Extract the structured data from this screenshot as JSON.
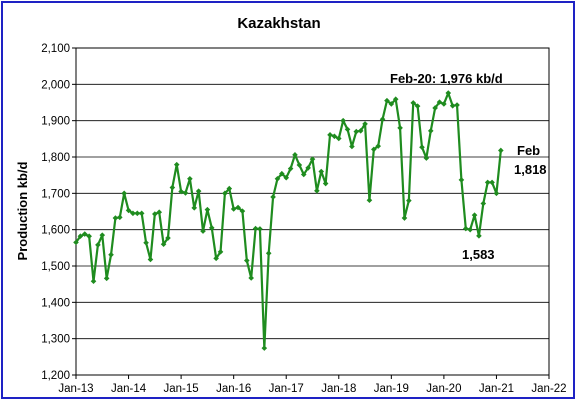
{
  "chart_data": {
    "type": "line",
    "title": "Kazakhstan",
    "xlabel": "",
    "ylabel": "Production kb/d",
    "ylim": [
      1200,
      2100
    ],
    "y_ticks": [
      1200,
      1300,
      1400,
      1500,
      1600,
      1700,
      1800,
      1900,
      2000,
      2100
    ],
    "y_tick_labels": [
      "1,200",
      "1,300",
      "1,400",
      "1,500",
      "1,600",
      "1,700",
      "1,800",
      "1,900",
      "2,000",
      "2,100"
    ],
    "x_tick_labels": [
      "Jan-13",
      "Jan-14",
      "Jan-15",
      "Jan-16",
      "Jan-17",
      "Jan-18",
      "Jan-19",
      "Jan-20",
      "Jan-21",
      "Jan-22"
    ],
    "x_start": "Jan-13",
    "grid": true,
    "colors": {
      "series": "#1f8c1f",
      "border": "#1e22c4",
      "grid": "#000000"
    },
    "series": [
      {
        "name": "",
        "values": [
          1565,
          1582,
          1588,
          1582,
          1458,
          1558,
          1585,
          1466,
          1531,
          1632,
          1634,
          1700,
          1653,
          1645,
          1645,
          1645,
          1564,
          1518,
          1643,
          1648,
          1560,
          1577,
          1716,
          1779,
          1705,
          1701,
          1740,
          1660,
          1706,
          1596,
          1655,
          1605,
          1521,
          1539,
          1700,
          1713,
          1657,
          1661,
          1651,
          1515,
          1467,
          1603,
          1602,
          1274,
          1535,
          1690,
          1740,
          1754,
          1743,
          1768,
          1806,
          1778,
          1752,
          1770,
          1794,
          1707,
          1760,
          1727,
          1861,
          1857,
          1851,
          1900,
          1876,
          1829,
          1870,
          1872,
          1891,
          1681,
          1821,
          1830,
          1904,
          1955,
          1946,
          1959,
          1880,
          1632,
          1680,
          1949,
          1940,
          1827,
          1797,
          1872,
          1935,
          1951,
          1946,
          1976,
          1941,
          1943,
          1737,
          1603,
          1600,
          1640,
          1583,
          1672,
          1730,
          1730,
          1700,
          1818
        ]
      }
    ],
    "annotations": [
      {
        "text": "Feb-20: 1,976 kb/d",
        "x": "Feb-20",
        "y": 1976
      },
      {
        "text": "Feb",
        "x": "Feb-21",
        "y": 1818
      },
      {
        "text": "1,818",
        "x": "Feb-21",
        "y": 1818
      },
      {
        "text": "1,583",
        "x": "Jul-20",
        "y": 1583
      }
    ]
  }
}
